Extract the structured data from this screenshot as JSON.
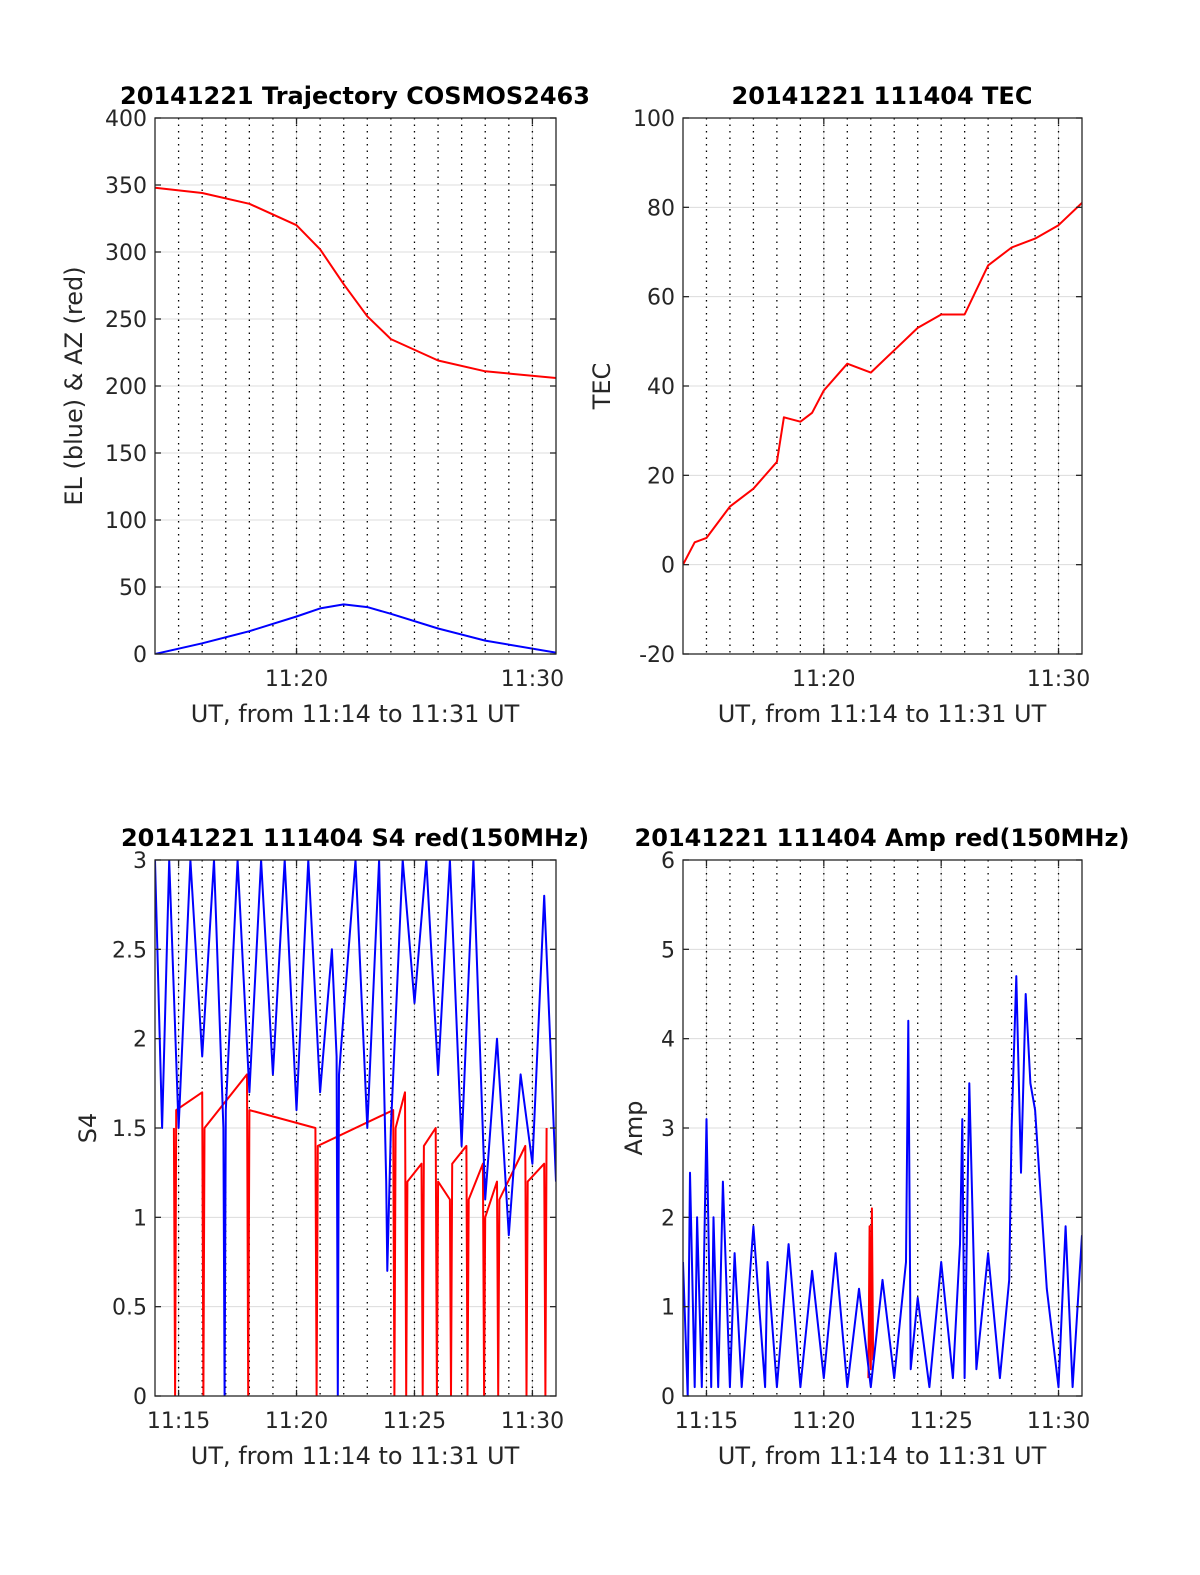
{
  "colors": {
    "blue": "#0000ff",
    "red": "#ff0000",
    "grid": "#dcdcdc",
    "axis": "#262626",
    "marker": "#000000"
  },
  "chart_data": [
    {
      "id": "traj",
      "type": "line",
      "title": "20141221 Trajectory COSMOS2463",
      "xlabel": "UT, from 11:14 to 11:31 UT",
      "ylabel": "EL (blue) & AZ (red)",
      "xlim": [
        0,
        17
      ],
      "ylim": [
        0,
        400
      ],
      "xticks": [
        {
          "v": 6,
          "label": "11:20"
        },
        {
          "v": 16,
          "label": "11:30"
        }
      ],
      "yticks": [
        {
          "v": 0,
          "label": "0"
        },
        {
          "v": 50,
          "label": "50"
        },
        {
          "v": 100,
          "label": "100"
        },
        {
          "v": 150,
          "label": "150"
        },
        {
          "v": 200,
          "label": "200"
        },
        {
          "v": 250,
          "label": "250"
        },
        {
          "v": 300,
          "label": "300"
        },
        {
          "v": 350,
          "label": "350"
        },
        {
          "v": 400,
          "label": "400"
        }
      ],
      "markers_min": [
        1,
        2,
        3,
        4,
        5,
        6,
        7,
        8,
        9,
        10,
        11,
        12,
        13,
        14,
        15,
        16
      ],
      "series": [
        {
          "color": "red",
          "x": [
            0,
            2,
            4,
            6,
            7,
            8,
            9,
            10,
            12,
            14,
            17
          ],
          "y": [
            348,
            344,
            336,
            320,
            302,
            276,
            252,
            235,
            219,
            211,
            206
          ]
        },
        {
          "color": "blue",
          "x": [
            0,
            2,
            4,
            6,
            7,
            8,
            9,
            10,
            12,
            14,
            17
          ],
          "y": [
            0,
            8,
            17,
            28,
            34,
            37,
            35,
            30,
            19,
            10,
            1
          ]
        }
      ]
    },
    {
      "id": "tec",
      "type": "line",
      "title": "20141221 111404 TEC",
      "xlabel": "UT, from 11:14 to 11:31 UT",
      "ylabel": "TEC",
      "xlim": [
        0,
        17
      ],
      "ylim": [
        -20,
        100
      ],
      "xticks": [
        {
          "v": 6,
          "label": "11:20"
        },
        {
          "v": 16,
          "label": "11:30"
        }
      ],
      "yticks": [
        {
          "v": -20,
          "label": "-20"
        },
        {
          "v": 0,
          "label": "0"
        },
        {
          "v": 20,
          "label": "20"
        },
        {
          "v": 40,
          "label": "40"
        },
        {
          "v": 60,
          "label": "60"
        },
        {
          "v": 80,
          "label": "80"
        },
        {
          "v": 100,
          "label": "100"
        }
      ],
      "markers_min": [
        1,
        2,
        3,
        4,
        5,
        6,
        7,
        8,
        9,
        10,
        11,
        12,
        13,
        14,
        15,
        16
      ],
      "series": [
        {
          "color": "red",
          "x": [
            0,
            0.5,
            1,
            2,
            3,
            4,
            4.3,
            5,
            5.5,
            6,
            7,
            8,
            9,
            10,
            11,
            12,
            13,
            14,
            15,
            16,
            17
          ],
          "y": [
            0,
            5,
            6,
            13,
            17,
            23,
            33,
            32,
            34,
            39,
            45,
            43,
            48,
            53,
            56,
            56,
            67,
            71,
            73,
            76,
            81
          ]
        }
      ]
    },
    {
      "id": "s4",
      "type": "line",
      "title": "20141221 111404 S4 red(150MHz)",
      "xlabel": "UT, from 11:14 to 11:31 UT",
      "ylabel": "S4",
      "xlim": [
        0,
        17
      ],
      "ylim": [
        0,
        3
      ],
      "xticks": [
        {
          "v": 1,
          "label": "11:15"
        },
        {
          "v": 6,
          "label": "11:20"
        },
        {
          "v": 11,
          "label": "11:25"
        },
        {
          "v": 16,
          "label": "11:30"
        }
      ],
      "yticks": [
        {
          "v": 0,
          "label": "0"
        },
        {
          "v": 0.5,
          "label": "0.5"
        },
        {
          "v": 1,
          "label": "1"
        },
        {
          "v": 1.5,
          "label": "1.5"
        },
        {
          "v": 2,
          "label": "2"
        },
        {
          "v": 2.5,
          "label": "2.5"
        },
        {
          "v": 3,
          "label": "3"
        }
      ],
      "markers_min": [
        1,
        2,
        3,
        4,
        5,
        6,
        7,
        8,
        9,
        10,
        11,
        12,
        13,
        14,
        15,
        16
      ],
      "series": [
        {
          "color": "red",
          "x": [
            0.8,
            0.85,
            0.9,
            2,
            2.05,
            2.1,
            3.9,
            3.95,
            4.0,
            6.8,
            6.85,
            6.9,
            10.1,
            10.15,
            10.2,
            10.6,
            10.65,
            10.7,
            11.3,
            11.35,
            11.4,
            11.9,
            11.95,
            12.0,
            12.5,
            12.55,
            12.6,
            13.2,
            13.25,
            13.3,
            13.9,
            13.95,
            14.0,
            14.5,
            14.55,
            14.6,
            15.7,
            15.75,
            15.8,
            16.5,
            16.55,
            16.6
          ],
          "y": [
            1.5,
            0,
            1.6,
            1.7,
            0,
            1.5,
            1.8,
            0,
            1.6,
            1.5,
            0,
            1.4,
            1.6,
            0,
            1.5,
            1.7,
            0,
            1.2,
            1.3,
            0,
            1.4,
            1.5,
            0,
            1.2,
            1.1,
            0,
            1.3,
            1.4,
            0,
            1.1,
            1.3,
            0,
            1.0,
            1.2,
            0,
            1.1,
            1.4,
            0,
            1.2,
            1.3,
            0,
            1.5
          ]
        },
        {
          "color": "blue",
          "x": [
            0,
            0.3,
            0.6,
            1,
            1.5,
            2,
            2.5,
            2.9,
            2.95,
            3.0,
            3.5,
            4,
            4.5,
            5,
            5.5,
            6,
            6.5,
            7,
            7.5,
            7.7,
            7.75,
            7.8,
            8.5,
            9,
            9.5,
            9.8,
            9.85,
            10,
            10.5,
            11,
            11.5,
            12,
            12.5,
            13,
            13.5,
            14,
            14.5,
            15,
            15.5,
            16,
            16.5,
            17
          ],
          "y": [
            3,
            1.5,
            3,
            1.5,
            3,
            1.9,
            3,
            1.5,
            0,
            1.6,
            3,
            1.7,
            3,
            1.8,
            3,
            1.6,
            3,
            1.7,
            2.5,
            1.9,
            0,
            1.8,
            3,
            1.5,
            3,
            1.2,
            0.7,
            1.5,
            3,
            2.2,
            3,
            1.8,
            3,
            1.4,
            3,
            1.1,
            2.0,
            0.9,
            1.8,
            1.3,
            2.8,
            1.2
          ]
        }
      ]
    },
    {
      "id": "amp",
      "type": "line",
      "title": "20141221 111404 Amp red(150MHz)",
      "xlabel": "UT, from 11:14 to 11:31 UT",
      "ylabel": "Amp",
      "xlim": [
        0,
        17
      ],
      "ylim": [
        0,
        6
      ],
      "xticks": [
        {
          "v": 1,
          "label": "11:15"
        },
        {
          "v": 6,
          "label": "11:20"
        },
        {
          "v": 11,
          "label": "11:25"
        },
        {
          "v": 16,
          "label": "11:30"
        }
      ],
      "yticks": [
        {
          "v": 0,
          "label": "0"
        },
        {
          "v": 1,
          "label": "1"
        },
        {
          "v": 2,
          "label": "2"
        },
        {
          "v": 3,
          "label": "3"
        },
        {
          "v": 4,
          "label": "4"
        },
        {
          "v": 5,
          "label": "5"
        },
        {
          "v": 6,
          "label": "6"
        }
      ],
      "markers_min": [
        1,
        2,
        3,
        4,
        5,
        6,
        7,
        8,
        9,
        10,
        11,
        12,
        13,
        14,
        15,
        16
      ],
      "series": [
        {
          "color": "red",
          "x": [
            7.9,
            7.95,
            8.0,
            8.05,
            8.1
          ],
          "y": [
            0.2,
            1.9,
            0.3,
            2.1,
            0.4
          ]
        },
        {
          "color": "blue",
          "x": [
            0,
            0.2,
            0.3,
            0.5,
            0.6,
            0.8,
            1.0,
            1.2,
            1.3,
            1.5,
            1.7,
            2.0,
            2.2,
            2.5,
            3.0,
            3.5,
            3.6,
            4.0,
            4.5,
            5.0,
            5.5,
            6.0,
            6.5,
            7.0,
            7.5,
            8.0,
            8.5,
            9.0,
            9.5,
            9.6,
            9.7,
            10.0,
            10.5,
            11.0,
            11.5,
            11.8,
            11.9,
            12.0,
            12.2,
            12.5,
            13.0,
            13.5,
            13.9,
            14.0,
            14.2,
            14.4,
            14.6,
            14.8,
            15.0,
            15.5,
            16.0,
            16.3,
            16.6,
            17
          ],
          "y": [
            1.5,
            0,
            2.5,
            0.1,
            2.0,
            0.1,
            3.1,
            0.1,
            2.0,
            0.1,
            2.4,
            0.1,
            1.6,
            0.1,
            1.9,
            0.1,
            1.5,
            0.1,
            1.7,
            0.1,
            1.4,
            0.2,
            1.6,
            0.1,
            1.2,
            0.1,
            1.3,
            0.2,
            1.5,
            4.2,
            0.3,
            1.1,
            0.1,
            1.5,
            0.2,
            1.7,
            3.1,
            0.2,
            3.5,
            0.3,
            1.6,
            0.2,
            1.3,
            3.0,
            4.7,
            2.5,
            4.5,
            3.5,
            3.2,
            1.2,
            0.1,
            1.9,
            0.1,
            1.8
          ]
        }
      ]
    }
  ]
}
